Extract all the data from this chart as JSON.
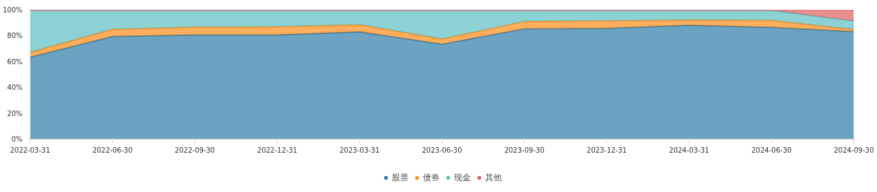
{
  "chart_data": {
    "type": "area",
    "stacked": true,
    "categories": [
      "2022-03-31",
      "2022-06-30",
      "2022-09-30",
      "2022-12-31",
      "2023-03-31",
      "2023-06-30",
      "2023-09-30",
      "2023-12-31",
      "2024-03-31",
      "2024-06-30",
      "2024-09-30"
    ],
    "series": [
      {
        "name": "股票",
        "color": "#2e7ca8",
        "values": [
          63.5,
          79.5,
          80.7,
          80.7,
          83.1,
          73.6,
          85.4,
          85.8,
          88.2,
          86.6,
          83.3
        ]
      },
      {
        "name": "债券",
        "color": "#ff8c1a",
        "values": [
          3.6,
          5.5,
          6.1,
          6.3,
          5.5,
          3.9,
          5.7,
          5.8,
          4.1,
          5.4,
          1.6
        ]
      },
      {
        "name": "现金",
        "color": "#5bbfc2",
        "values": [
          32.6,
          14.7,
          12.9,
          12.7,
          11.1,
          22.2,
          8.6,
          8.1,
          7.4,
          7.7,
          6.6
        ]
      },
      {
        "name": "其他",
        "color": "#e06060",
        "values": [
          0.3,
          0.3,
          0.3,
          0.3,
          0.3,
          0.3,
          0.3,
          0.3,
          0.3,
          0.3,
          8.5
        ]
      }
    ],
    "ylim": [
      0,
      100
    ],
    "yticks": [
      {
        "value": 0,
        "label": "0%"
      },
      {
        "value": 20,
        "label": "20%"
      },
      {
        "value": 40,
        "label": "40%"
      },
      {
        "value": 60,
        "label": "60%"
      },
      {
        "value": 80,
        "label": "80%"
      },
      {
        "value": 100,
        "label": "100%"
      }
    ],
    "grid": "y",
    "legend": "bottom"
  }
}
